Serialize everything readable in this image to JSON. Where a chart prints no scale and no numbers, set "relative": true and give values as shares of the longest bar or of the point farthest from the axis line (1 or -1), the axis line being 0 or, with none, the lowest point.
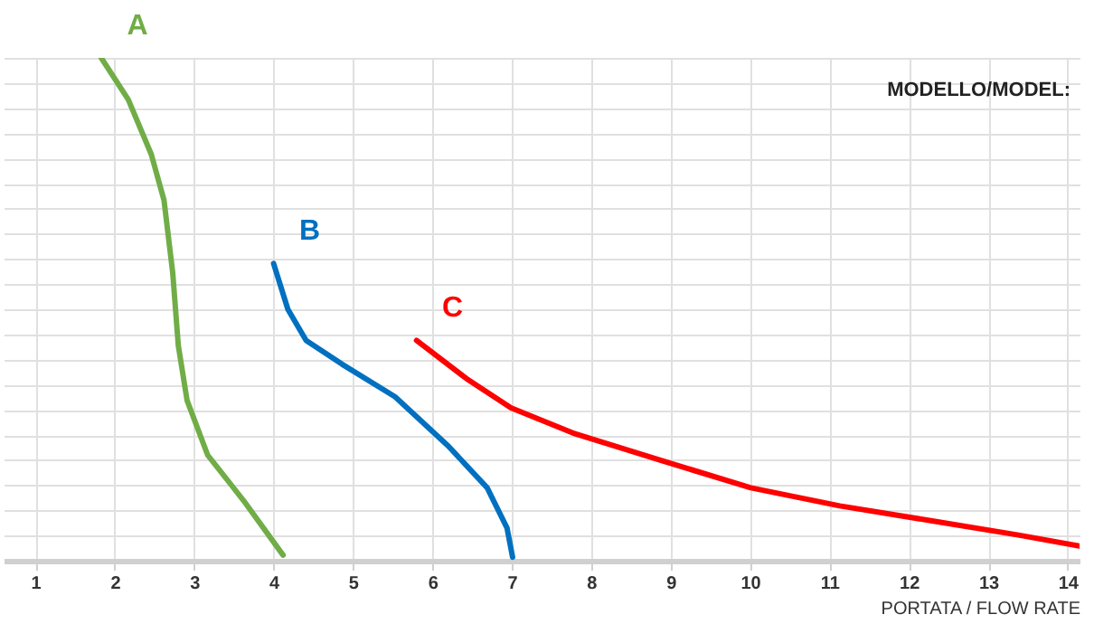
{
  "chart_data": {
    "type": "line",
    "relative": true,
    "xlabel": "PORTATA / FLOW RATE",
    "xlim": [
      0.6,
      14.15
    ],
    "xticks": [
      1,
      2,
      3,
      4,
      5,
      6,
      7,
      8,
      9,
      10,
      11,
      12,
      13,
      14
    ],
    "grid": true,
    "legend": false,
    "line_style": "solid",
    "annotations": [
      "MODELLO/MODEL:"
    ],
    "series": [
      {
        "name": "A",
        "color": "#70ad47",
        "x": [
          1.83,
          2.17,
          2.46,
          2.62,
          2.73,
          2.8,
          2.91,
          3.17,
          3.62,
          4.12
        ],
        "values": [
          1.0,
          0.917,
          0.808,
          0.717,
          0.572,
          0.428,
          0.319,
          0.21,
          0.12,
          0.011
        ]
      },
      {
        "name": "B",
        "color": "#0070c0",
        "x": [
          4.0,
          4.18,
          4.41,
          4.86,
          5.53,
          6.2,
          6.69,
          6.94,
          7.01
        ],
        "values": [
          0.591,
          0.5,
          0.438,
          0.391,
          0.326,
          0.228,
          0.145,
          0.065,
          0.007
        ]
      },
      {
        "name": "C",
        "color": "#ff0000",
        "x": [
          5.8,
          6.43,
          6.99,
          7.77,
          8.89,
          10.01,
          11.13,
          12.26,
          13.38,
          14.15
        ],
        "values": [
          0.438,
          0.362,
          0.304,
          0.254,
          0.199,
          0.145,
          0.109,
          0.08,
          0.051,
          0.029
        ]
      }
    ]
  }
}
